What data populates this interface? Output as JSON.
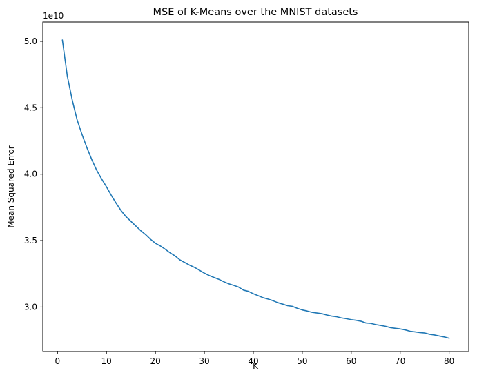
{
  "chart_data": {
    "type": "line",
    "title": "MSE of K-Means over the MNIST datasets",
    "xlabel": "K",
    "ylabel": "Mean Squared Error",
    "y_offset_label": "1e10",
    "xlim": [
      -3.0,
      84.0
    ],
    "ylim": [
      2.665,
      5.145
    ],
    "xticks": [
      0,
      10,
      20,
      30,
      40,
      50,
      60,
      70,
      80
    ],
    "xtick_labels": [
      "0",
      "10",
      "20",
      "30",
      "40",
      "50",
      "60",
      "70",
      "80"
    ],
    "yticks": [
      3.0,
      3.5,
      4.0,
      4.5,
      5.0
    ],
    "ytick_labels": [
      "3.0",
      "3.5",
      "4.0",
      "4.5",
      "5.0"
    ],
    "grid": false,
    "line_color": "#1f77b4",
    "series": [
      {
        "x": [
          1,
          2,
          3,
          4,
          5,
          6,
          7,
          8,
          9,
          10,
          11,
          12,
          13,
          14,
          15,
          16,
          17,
          18,
          19,
          20,
          21,
          22,
          23,
          24,
          25,
          26,
          27,
          28,
          29,
          30,
          31,
          32,
          33,
          34,
          35,
          36,
          37,
          38,
          39,
          40,
          41,
          42,
          43,
          44,
          45,
          46,
          47,
          48,
          49,
          50,
          51,
          52,
          53,
          54,
          55,
          56,
          57,
          58,
          59,
          60,
          61,
          62,
          63,
          64,
          65,
          66,
          67,
          68,
          69,
          70,
          71,
          72,
          73,
          74,
          75,
          76,
          77,
          78,
          79,
          80
        ],
        "y": [
          5.01,
          4.74,
          4.56,
          4.41,
          4.3,
          4.2,
          4.11,
          4.03,
          3.965,
          3.905,
          3.84,
          3.78,
          3.725,
          3.68,
          3.645,
          3.61,
          3.575,
          3.545,
          3.51,
          3.48,
          3.46,
          3.435,
          3.408,
          3.385,
          3.355,
          3.335,
          3.315,
          3.298,
          3.277,
          3.255,
          3.237,
          3.222,
          3.208,
          3.19,
          3.175,
          3.163,
          3.15,
          3.127,
          3.118,
          3.1,
          3.085,
          3.07,
          3.06,
          3.048,
          3.033,
          3.022,
          3.01,
          3.005,
          2.99,
          2.978,
          2.97,
          2.96,
          2.955,
          2.95,
          2.94,
          2.932,
          2.927,
          2.918,
          2.912,
          2.905,
          2.9,
          2.893,
          2.88,
          2.877,
          2.868,
          2.862,
          2.855,
          2.845,
          2.84,
          2.835,
          2.828,
          2.818,
          2.813,
          2.808,
          2.805,
          2.795,
          2.79,
          2.782,
          2.775,
          2.765
        ]
      }
    ]
  }
}
